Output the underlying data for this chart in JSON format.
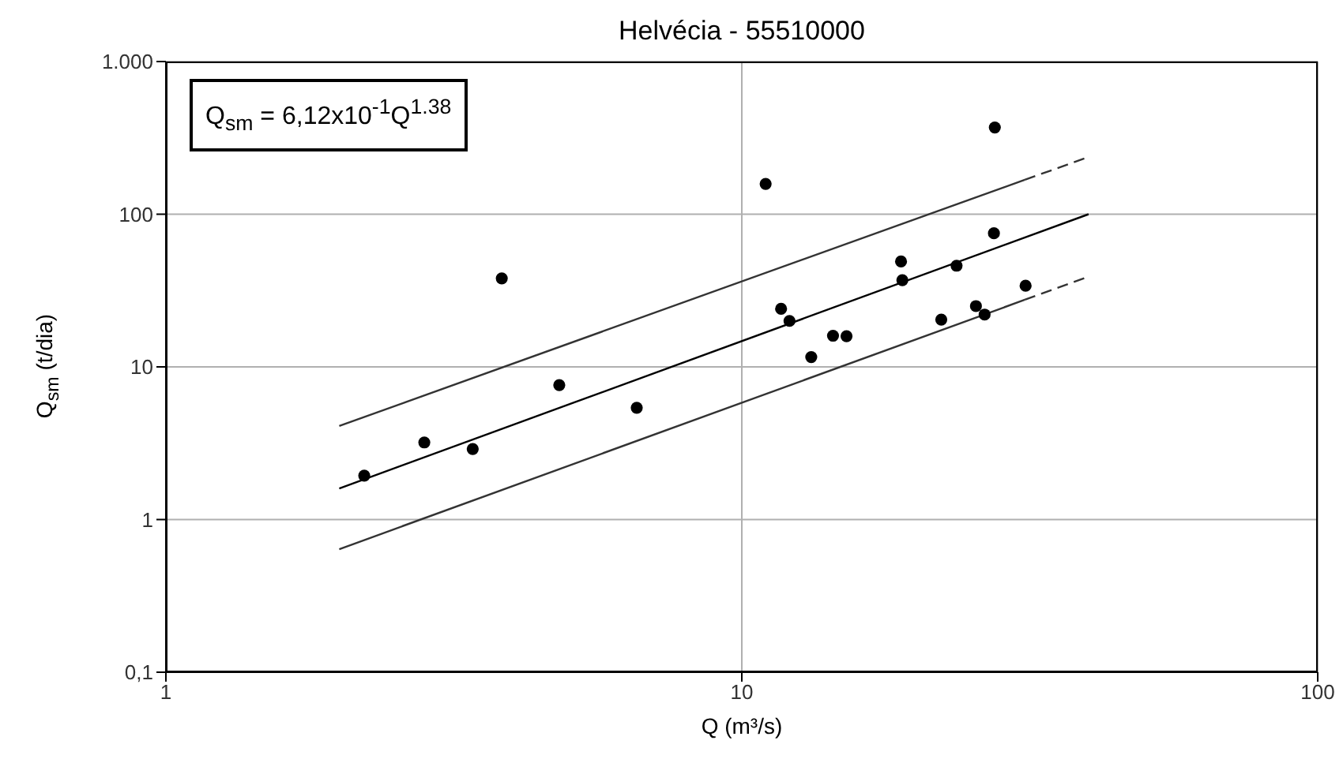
{
  "chart_data": {
    "type": "scatter",
    "title": "Helvécia - 55510000",
    "xlabel": "Q (m³/s)",
    "ylabel": "Q$_{sm}$ (t/dia)",
    "annotations": [
      "Q$_{sm}$ = 6,12x10$^{-1}$Q$^{1.38}$"
    ],
    "log": "xy",
    "grid": true,
    "xlim": [
      1,
      100
    ],
    "xticks": [
      1,
      10,
      100
    ],
    "ylim": [
      0.1,
      1000
    ],
    "yticks": [
      {
        "value": 0.1,
        "label": "0,1"
      },
      1,
      10,
      100,
      {
        "value": 1000,
        "label": "1.000"
      }
    ],
    "series": [
      {
        "marker": "circle",
        "color": "#000000",
        "x": [
          2.21,
          2.81,
          3.41,
          3.83,
          4.82,
          6.57,
          11.0,
          11.7,
          12.1,
          13.2,
          14.4,
          15.2,
          18.9,
          19.0,
          22.2,
          23.6,
          25.5,
          26.4,
          27.5,
          27.4,
          31.1
        ],
        "values": [
          1.94,
          3.2,
          2.9,
          38,
          7.6,
          5.4,
          158,
          24,
          20,
          11.6,
          16,
          15.9,
          49,
          37,
          20.4,
          46,
          25,
          22,
          370,
          75,
          34
        ]
      },
      {
        "type": "line",
        "marker": "none",
        "line_style": "solid",
        "color": "#000000",
        "x": [
          2,
          40
        ],
        "values": [
          1.6,
          100
        ]
      },
      {
        "type": "line",
        "marker": "none",
        "line_style": "solid",
        "color": "#333333",
        "x": [
          2,
          31
        ],
        "values": [
          4.1,
          168
        ]
      },
      {
        "type": "line",
        "marker": "none",
        "line_style": "dashed",
        "color": "#333333",
        "x": [
          31,
          40
        ],
        "values": [
          168,
          237
        ]
      },
      {
        "type": "line",
        "marker": "none",
        "line_style": "solid",
        "color": "#333333",
        "x": [
          2,
          31
        ],
        "values": [
          0.64,
          27.5
        ]
      },
      {
        "type": "line",
        "marker": "none",
        "line_style": "dashed",
        "color": "#333333",
        "x": [
          31,
          40
        ],
        "values": [
          27.5,
          39
        ]
      }
    ]
  }
}
